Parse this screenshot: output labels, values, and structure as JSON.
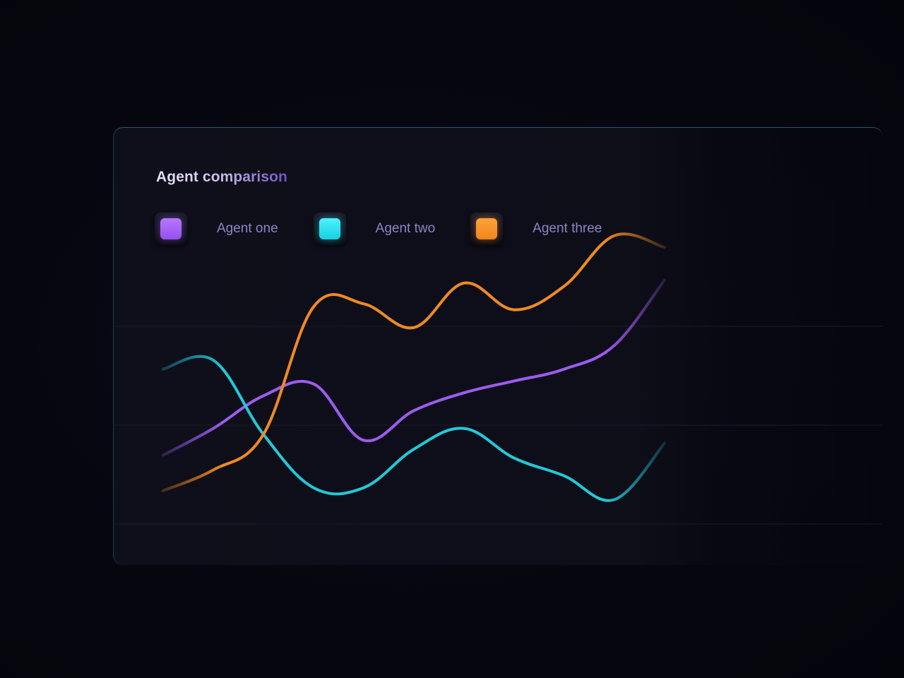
{
  "card": {
    "title": "Agent comparison"
  },
  "legend": [
    {
      "label": "Agent one",
      "color": "#9d5cf0"
    },
    {
      "label": "Agent two",
      "color": "#22c9d6"
    },
    {
      "label": "Agent three",
      "color": "#f08a24"
    }
  ],
  "chart_data": {
    "type": "line",
    "title": "Agent comparison",
    "xlabel": "",
    "ylabel": "",
    "grid": true,
    "legend_position": "top-left",
    "x": [
      0,
      1,
      2,
      3,
      4,
      5,
      6,
      7,
      8,
      9,
      10
    ],
    "ylim": [
      0,
      100
    ],
    "series": [
      {
        "name": "Agent one",
        "color": "#9d5cf0",
        "values": [
          23,
          32,
          43,
          47,
          28,
          38,
          44,
          48,
          52,
          60,
          82
        ]
      },
      {
        "name": "Agent two",
        "color": "#22c9d6",
        "values": [
          52,
          55,
          30,
          12,
          12,
          25,
          32,
          22,
          16,
          8,
          27
        ]
      },
      {
        "name": "Agent three",
        "color": "#f08a24",
        "values": [
          11,
          18,
          30,
          73,
          74,
          66,
          81,
          72,
          80,
          97,
          93
        ]
      }
    ]
  }
}
